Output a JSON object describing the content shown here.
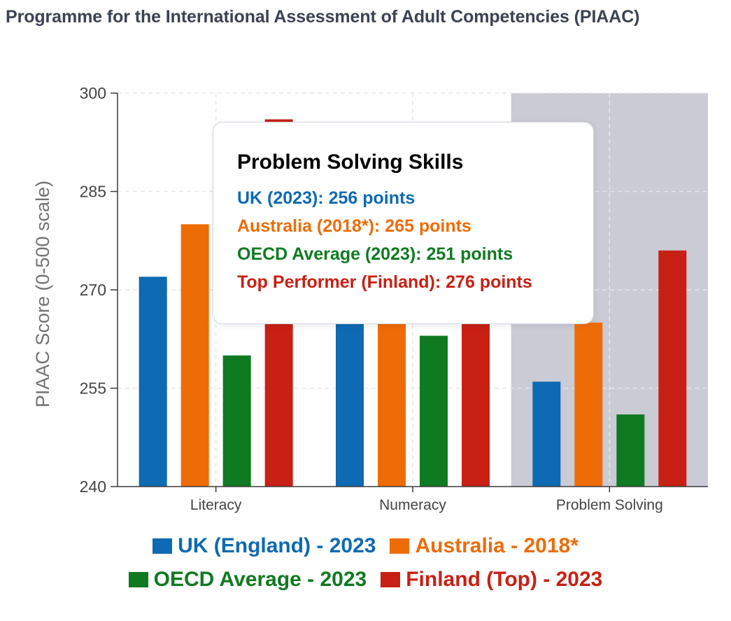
{
  "chart_data": {
    "type": "bar",
    "title": "Programme for the International Assessment of Adult Competencies (PIAAC)",
    "ylabel": "PIAAC Score (0-500 scale)",
    "xlabel": "",
    "ylim": [
      240,
      300
    ],
    "yticks": [
      240,
      255,
      270,
      285,
      300
    ],
    "grid": true,
    "highlighted_category": "Problem Solving",
    "legend_position": "bottom",
    "categories": [
      "Literacy",
      "Numeracy",
      "Problem Solving"
    ],
    "series": [
      {
        "name": "UK (England) - 2023",
        "color": "#0e6ab2",
        "values": [
          272,
          265,
          256
        ]
      },
      {
        "name": "Australia - 2018*",
        "color": "#ee6c07",
        "values": [
          280,
          265,
          265
        ]
      },
      {
        "name": "OECD Average - 2023",
        "color": "#107a21",
        "values": [
          260,
          263,
          251
        ]
      },
      {
        "name": "Finland (Top) - 2023",
        "color": "#c82015",
        "values": [
          296,
          265,
          276
        ]
      }
    ]
  },
  "tooltip": {
    "title": "Problem Solving Skills",
    "lines": [
      {
        "text": "UK (2023): 256 points",
        "color": "#0e6ab2"
      },
      {
        "text": "Australia (2018*): 265 points",
        "color": "#ee6c07"
      },
      {
        "text": "OECD Average (2023): 251 points",
        "color": "#107a21"
      },
      {
        "text": "Top Performer (Finland): 276 points",
        "color": "#c82015"
      }
    ]
  },
  "colors": {
    "highlight_band": "#cbcbd5",
    "axis": "#3a3a3a",
    "grid": "#e4e6ee",
    "tick_text": "#444444",
    "ylabel_text": "#737373"
  }
}
